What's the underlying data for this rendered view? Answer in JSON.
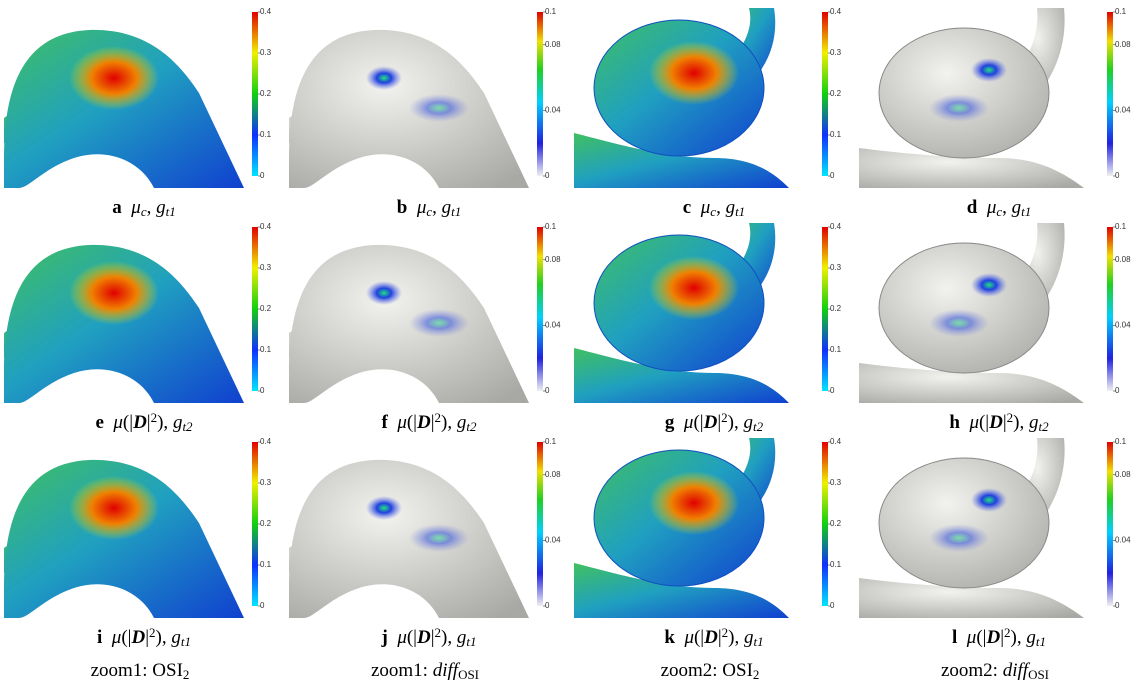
{
  "panels": [
    {
      "letter": "a",
      "caption": [
        {
          "i": "μ"
        },
        {
          "s": "c"
        },
        {
          "t": ", "
        },
        {
          "i": "g"
        },
        {
          "s": "t1"
        }
      ],
      "colorbar": {
        "ylim": [
          0,
          0.4
        ],
        "yticks": [
          0,
          0.1,
          0.2,
          0.3,
          0.4
        ]
      }
    },
    {
      "letter": "b",
      "caption": [
        {
          "i": "μ"
        },
        {
          "s": "c"
        },
        {
          "t": ", "
        },
        {
          "i": "g"
        },
        {
          "s": "t1"
        }
      ],
      "colorbar": {
        "ylim": [
          0,
          0.1
        ],
        "yticks": [
          0,
          0.04,
          0.08,
          0.1
        ]
      }
    },
    {
      "letter": "c",
      "caption": [
        {
          "i": "μ"
        },
        {
          "s": "c"
        },
        {
          "t": ", "
        },
        {
          "i": "g"
        },
        {
          "s": "t1"
        }
      ],
      "colorbar": {
        "ylim": [
          0,
          0.4
        ],
        "yticks": [
          0,
          0.1,
          0.2,
          0.3,
          0.4
        ]
      }
    },
    {
      "letter": "d",
      "caption": [
        {
          "i": "μ"
        },
        {
          "s": "c"
        },
        {
          "t": ", "
        },
        {
          "i": "g"
        },
        {
          "s": "t1"
        }
      ],
      "colorbar": {
        "ylim": [
          0,
          0.1
        ],
        "yticks": [
          0,
          0.04,
          0.08,
          0.1
        ]
      }
    },
    {
      "letter": "e",
      "caption": [
        {
          "i": "μ"
        },
        {
          "t": "(|"
        },
        {
          "b": "D"
        },
        {
          "t": "|"
        },
        {
          "p": "2"
        },
        {
          "t": "), "
        },
        {
          "i": "g"
        },
        {
          "s": "t2"
        }
      ],
      "colorbar": {
        "ylim": [
          0,
          0.4
        ],
        "yticks": [
          0,
          0.1,
          0.2,
          0.3,
          0.4
        ]
      }
    },
    {
      "letter": "f",
      "caption": [
        {
          "i": "μ"
        },
        {
          "t": "(|"
        },
        {
          "b": "D"
        },
        {
          "t": "|"
        },
        {
          "p": "2"
        },
        {
          "t": "), "
        },
        {
          "i": "g"
        },
        {
          "s": "t2"
        }
      ],
      "colorbar": {
        "ylim": [
          0,
          0.1
        ],
        "yticks": [
          0,
          0.04,
          0.08,
          0.1
        ]
      }
    },
    {
      "letter": "g",
      "caption": [
        {
          "i": "μ"
        },
        {
          "t": "(|"
        },
        {
          "b": "D"
        },
        {
          "t": "|"
        },
        {
          "p": "2"
        },
        {
          "t": "), "
        },
        {
          "i": "g"
        },
        {
          "s": "t2"
        }
      ],
      "colorbar": {
        "ylim": [
          0,
          0.4
        ],
        "yticks": [
          0,
          0.1,
          0.2,
          0.3,
          0.4
        ]
      }
    },
    {
      "letter": "h",
      "caption": [
        {
          "i": "μ"
        },
        {
          "t": "(|"
        },
        {
          "b": "D"
        },
        {
          "t": "|"
        },
        {
          "p": "2"
        },
        {
          "t": "), "
        },
        {
          "i": "g"
        },
        {
          "s": "t2"
        }
      ],
      "colorbar": {
        "ylim": [
          0,
          0.1
        ],
        "yticks": [
          0,
          0.04,
          0.08,
          0.1
        ]
      }
    },
    {
      "letter": "i",
      "caption": [
        {
          "i": "μ"
        },
        {
          "t": "(|"
        },
        {
          "b": "D"
        },
        {
          "t": "|"
        },
        {
          "p": "2"
        },
        {
          "t": "), "
        },
        {
          "i": "g"
        },
        {
          "s": "t1"
        }
      ],
      "colorbar": {
        "ylim": [
          0,
          0.4
        ],
        "yticks": [
          0,
          0.1,
          0.2,
          0.3,
          0.4
        ]
      }
    },
    {
      "letter": "j",
      "caption": [
        {
          "i": "μ"
        },
        {
          "t": "(|"
        },
        {
          "b": "D"
        },
        {
          "t": "|"
        },
        {
          "p": "2"
        },
        {
          "t": "), "
        },
        {
          "i": "g"
        },
        {
          "s": "t1"
        }
      ],
      "colorbar": {
        "ylim": [
          0,
          0.1
        ],
        "yticks": [
          0,
          0.04,
          0.08,
          0.1
        ]
      }
    },
    {
      "letter": "k",
      "caption": [
        {
          "i": "μ"
        },
        {
          "t": "(|"
        },
        {
          "b": "D"
        },
        {
          "t": "|"
        },
        {
          "p": "2"
        },
        {
          "t": "), "
        },
        {
          "i": "g"
        },
        {
          "s": "t1"
        }
      ],
      "colorbar": {
        "ylim": [
          0,
          0.4
        ],
        "yticks": [
          0,
          0.1,
          0.2,
          0.3,
          0.4
        ]
      }
    },
    {
      "letter": "l",
      "caption": [
        {
          "i": "μ"
        },
        {
          "t": "(|"
        },
        {
          "b": "D"
        },
        {
          "t": "|"
        },
        {
          "p": "2"
        },
        {
          "t": "), "
        },
        {
          "i": "g"
        },
        {
          "s": "t1"
        }
      ],
      "colorbar": {
        "ylim": [
          0,
          0.1
        ],
        "yticks": [
          0,
          0.04,
          0.08,
          0.1
        ]
      }
    }
  ],
  "column_labels": [
    [
      {
        "t": "zoom1: OSI"
      },
      {
        "u": "2"
      }
    ],
    [
      {
        "t": "zoom1: "
      },
      {
        "i": "diff"
      },
      {
        "u": "OSI"
      }
    ],
    [
      {
        "t": "zoom2: OSI"
      },
      {
        "u": "2"
      }
    ],
    [
      {
        "t": "zoom2: "
      },
      {
        "i": "diff"
      },
      {
        "u": "OSI"
      }
    ]
  ]
}
